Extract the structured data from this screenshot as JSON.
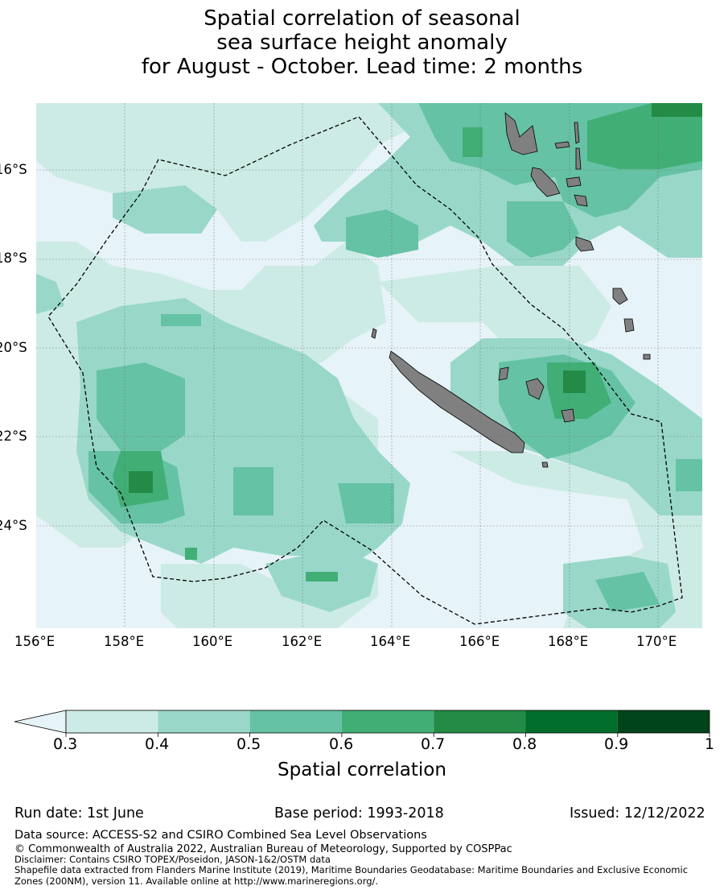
{
  "title": {
    "line1": "Spatial correlation of seasonal",
    "line2": "sea surface height anomaly",
    "line3": "for August - October. Lead time: 2 months"
  },
  "map": {
    "lon_ticks": [
      "156°E",
      "158°E",
      "160°E",
      "162°E",
      "164°E",
      "166°E",
      "168°E",
      "170°E"
    ],
    "lat_ticks": [
      "16°S",
      "18°S",
      "20°S",
      "22°S",
      "24°S"
    ],
    "land_color": "#808080",
    "boundary_style": "dashed black line (EEZ)"
  },
  "colorbar": {
    "label": "Spatial correlation",
    "ticks": [
      "0.3",
      "0.4",
      "0.5",
      "0.6",
      "0.7",
      "0.8",
      "0.9",
      "1"
    ],
    "under_color": "#e6f3f8",
    "colors": [
      "#cdebe5",
      "#99d8c9",
      "#66c2a4",
      "#41ae76",
      "#238b45",
      "#006d2c",
      "#00441b"
    ]
  },
  "meta": {
    "run_date": "Run date: 1st June",
    "base_period": "Base period: 1993-2018",
    "issued": "Issued: 12/12/2022"
  },
  "footer": {
    "data_source": "Data source: ACCESS-S2 and CSIRO Combined Sea Level Observations",
    "copyright": "© Commonwealth of Australia 2022, Australian Bureau of Meteorology, Supported by COSPPac",
    "disclaimer": "Disclaimer: Contains CSIRO TOPEX/Poseidon, JASON-1&2/OSTM data",
    "shapefile_line1": "Shapefile data extracted from Flanders Marine Institute (2019), Maritime Boundaries Geodatabase: Maritime Boundaries and Exclusive Economic",
    "shapefile_line2": "Zones (200NM), version 11. Available online at http://www.marineregions.org/."
  }
}
